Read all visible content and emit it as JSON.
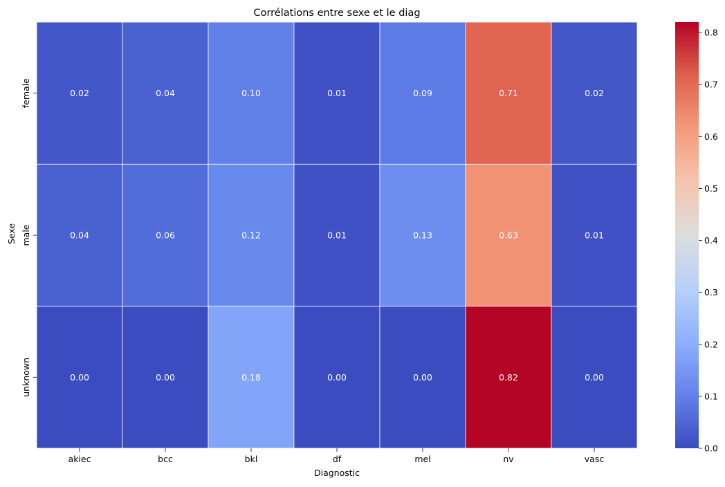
{
  "chart_data": {
    "type": "heatmap",
    "title": "Corrélations entre sexe et le diag",
    "xlabel": "Diagnostic",
    "ylabel": "Sexe",
    "x_categories": [
      "akiec",
      "bcc",
      "bkl",
      "df",
      "mel",
      "nv",
      "vasc"
    ],
    "y_categories": [
      "female",
      "male",
      "unknown"
    ],
    "values": [
      [
        0.02,
        0.04,
        0.1,
        0.01,
        0.09,
        0.71,
        0.02
      ],
      [
        0.04,
        0.06,
        0.12,
        0.01,
        0.13,
        0.63,
        0.01
      ],
      [
        0.0,
        0.0,
        0.18,
        0.0,
        0.0,
        0.82,
        0.0
      ]
    ],
    "annotation_format": "0.00",
    "colormap": "coolwarm",
    "color_range": [
      0.0,
      0.82
    ],
    "colorbar_ticks": [
      "0.0",
      "0.1",
      "0.2",
      "0.3",
      "0.4",
      "0.5",
      "0.6",
      "0.7",
      "0.8"
    ],
    "cell_separator_color": "#ffffff",
    "grid": false,
    "legend": "colorbar-right"
  }
}
